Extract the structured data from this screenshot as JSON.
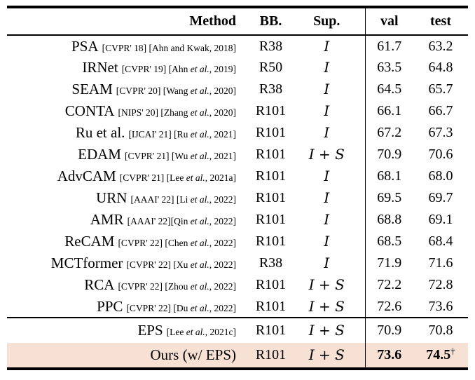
{
  "table": {
    "columns": {
      "method": "Method",
      "bb": "BB.",
      "sup": "Sup.",
      "val": "val",
      "test": "test"
    },
    "highlight_color": "#f7e0d4",
    "rows": [
      {
        "name": "PSA",
        "refs": "[CVPR' 18] [Ahn and Kwak, 2018]",
        "bb": "R38",
        "sup": "I",
        "val": "61.7",
        "test": "63.2"
      },
      {
        "name": "IRNet",
        "refs": "[CVPR' 19] [Ahn et al., 2019]",
        "bb": "R50",
        "sup": "I",
        "val": "63.5",
        "test": "64.8"
      },
      {
        "name": "SEAM",
        "refs": "[CVPR' 20] [Wang et al., 2020]",
        "bb": "R38",
        "sup": "I",
        "val": "64.5",
        "test": "65.7"
      },
      {
        "name": "CONTA",
        "refs": "[NIPS' 20] [Zhang et al., 2020]",
        "bb": "R101",
        "sup": "I",
        "val": "66.1",
        "test": "66.7"
      },
      {
        "name": "Ru et al.",
        "refs": "[IJCAI' 21] [Ru et al., 2021]",
        "bb": "R101",
        "sup": "I",
        "val": "67.2",
        "test": "67.3"
      },
      {
        "name": "EDAM",
        "refs": "[CVPR' 21] [Wu et al., 2021]",
        "bb": "R101",
        "sup": "I + S",
        "val": "70.9",
        "test": "70.6"
      },
      {
        "name": "AdvCAM",
        "refs": "[CVPR' 21] [Lee et al., 2021a]",
        "bb": "R101",
        "sup": "I",
        "val": "68.1",
        "test": "68.0"
      },
      {
        "name": "URN",
        "refs": "[AAAI' 22] [Li et al., 2022]",
        "bb": "R101",
        "sup": "I",
        "val": "69.5",
        "test": "69.7"
      },
      {
        "name": "AMR",
        "refs": "[AAAI' 22][Qin et al., 2022]",
        "bb": "R101",
        "sup": "I",
        "val": "68.8",
        "test": "69.1"
      },
      {
        "name": "ReCAM",
        "refs": "[CVPR' 22] [Chen et al., 2022]",
        "bb": "R101",
        "sup": "I",
        "val": "68.5",
        "test": "68.4"
      },
      {
        "name": "MCTformer",
        "refs": "[CVPR' 22] [Xu et al., 2022]",
        "bb": "R38",
        "sup": "I",
        "val": "71.9",
        "test": "71.6"
      },
      {
        "name": "RCA",
        "refs": "[CVPR' 22] [Zhou et al., 2022]",
        "bb": "R101",
        "sup": "I + S",
        "val": "72.2",
        "test": "72.8"
      },
      {
        "name": "PPC",
        "refs": "[CVPR' 22] [Du et al., 2022]",
        "bb": "R101",
        "sup": "I + S",
        "val": "72.6",
        "test": "73.6"
      },
      {
        "name": "EPS",
        "refs": "[Lee et al., 2021c]",
        "bb": "R101",
        "sup": "I + S",
        "val": "70.9",
        "test": "70.8",
        "section_start": true
      },
      {
        "name": "Ours (w/ EPS)",
        "refs": "",
        "bb": "R101",
        "sup": "I + S",
        "val": "73.6",
        "test": "74.5",
        "test_mark": "†",
        "highlight": true,
        "bold": true
      }
    ]
  }
}
